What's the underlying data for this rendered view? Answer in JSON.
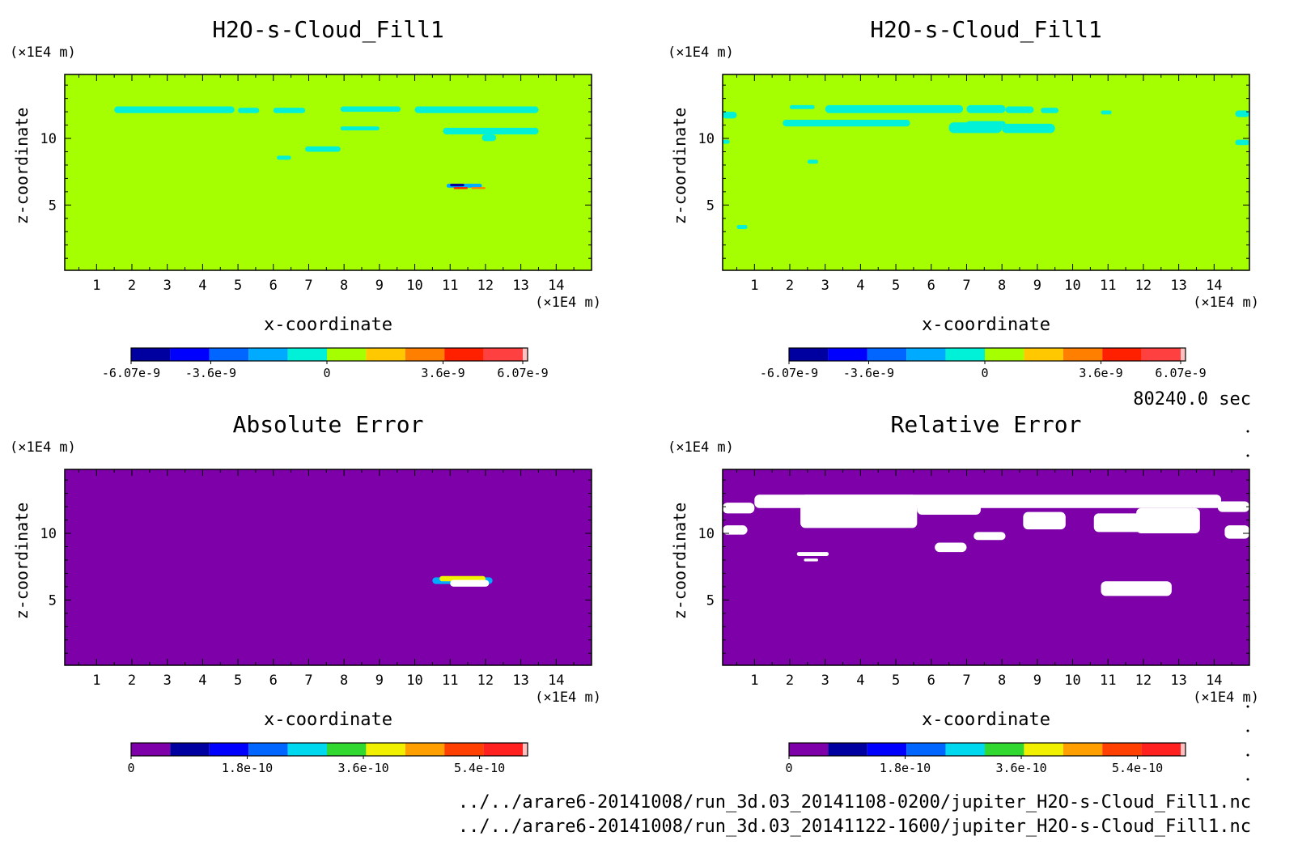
{
  "time_label": "80240.0 sec",
  "files": [
    "../../arare6-20141008/run_3d.03_20141108-0200/jupiter_H2O-s-Cloud_Fill1.nc",
    "../../arare6-20141008/run_3d.03_20141122-1600/jupiter_H2O-s-Cloud_Fill1.nc"
  ],
  "chart_data": [
    {
      "type": "heatmap",
      "title": "H2O-s-Cloud_Fill1",
      "xlabel": "x-coordinate",
      "ylabel": "z-coordinate",
      "x_unit": "(×1E4 m)",
      "y_unit": "(×1E4 m)",
      "xlim": [
        0.1,
        15.0
      ],
      "ylim": [
        0.1,
        14.8
      ],
      "x_ticks": [
        1,
        2,
        3,
        4,
        5,
        6,
        7,
        8,
        9,
        10,
        11,
        12,
        13,
        14
      ],
      "y_ticks": [
        5,
        10
      ],
      "background_color": "#a5ff00",
      "colorbar": {
        "colors": [
          "#0000a0",
          "#0000ff",
          "#0066ff",
          "#00aaff",
          "#00f0d8",
          "#a5ff00",
          "#ffc800",
          "#ff8000",
          "#ff2000",
          "#ff4040",
          "#ffc0c0"
        ],
        "tick_labels": [
          "-6.07e-9",
          "-3.6e-9",
          "0",
          "3.6e-9",
          "6.07e-9"
        ],
        "tick_values": [
          -6.07e-09,
          -3.6e-09,
          0,
          3.6e-09,
          6.07e-09
        ],
        "range": [
          -6.07e-09,
          6.07e-09
        ]
      },
      "regions": [
        {
          "color": "#00f0d8",
          "x": [
            1.5,
            4.9
          ],
          "z": [
            11.9,
            12.4
          ]
        },
        {
          "color": "#00f0d8",
          "x": [
            5.0,
            5.6
          ],
          "z": [
            11.9,
            12.3
          ]
        },
        {
          "color": "#00f0d8",
          "x": [
            6.0,
            6.9
          ],
          "z": [
            11.9,
            12.3
          ]
        },
        {
          "color": "#00f0d8",
          "x": [
            7.9,
            9.6
          ],
          "z": [
            12.0,
            12.4
          ]
        },
        {
          "color": "#00f0d8",
          "x": [
            10.0,
            13.5
          ],
          "z": [
            11.9,
            12.4
          ]
        },
        {
          "color": "#00f0d8",
          "x": [
            7.9,
            9.0
          ],
          "z": [
            10.6,
            10.9
          ]
        },
        {
          "color": "#00f0d8",
          "x": [
            10.8,
            13.5
          ],
          "z": [
            10.3,
            10.8
          ]
        },
        {
          "color": "#00f0d8",
          "x": [
            11.9,
            12.3
          ],
          "z": [
            9.8,
            10.3
          ]
        },
        {
          "color": "#00f0d8",
          "x": [
            6.9,
            7.9
          ],
          "z": [
            9.0,
            9.4
          ]
        },
        {
          "color": "#00f0d8",
          "x": [
            6.1,
            6.5
          ],
          "z": [
            8.4,
            8.7
          ]
        },
        {
          "color": "#00aaff",
          "x": [
            10.9,
            11.9
          ],
          "z": [
            6.3,
            6.6
          ]
        },
        {
          "color": "#0000a0",
          "x": [
            11.0,
            11.4
          ],
          "z": [
            6.4,
            6.6
          ]
        },
        {
          "color": "#ff2000",
          "x": [
            11.1,
            11.5
          ],
          "z": [
            6.2,
            6.35
          ]
        },
        {
          "color": "#ff8000",
          "x": [
            11.6,
            12.0
          ],
          "z": [
            6.2,
            6.35
          ]
        }
      ]
    },
    {
      "type": "heatmap",
      "title": "H2O-s-Cloud_Fill1",
      "xlabel": "x-coordinate",
      "ylabel": "z-coordinate",
      "x_unit": "(×1E4 m)",
      "y_unit": "(×1E4 m)",
      "xlim": [
        0.1,
        15.0
      ],
      "ylim": [
        0.1,
        14.8
      ],
      "x_ticks": [
        1,
        2,
        3,
        4,
        5,
        6,
        7,
        8,
        9,
        10,
        11,
        12,
        13,
        14
      ],
      "y_ticks": [
        5,
        10
      ],
      "background_color": "#a5ff00",
      "colorbar": {
        "colors": [
          "#0000a0",
          "#0000ff",
          "#0066ff",
          "#00aaff",
          "#00f0d8",
          "#a5ff00",
          "#ffc800",
          "#ff8000",
          "#ff2000",
          "#ff4040",
          "#ffc0c0"
        ],
        "tick_labels": [
          "-6.07e-9",
          "-3.6e-9",
          "0",
          "3.6e-9",
          "6.07e-9"
        ],
        "tick_values": [
          -6.07e-09,
          -3.6e-09,
          0,
          3.6e-09,
          6.07e-09
        ],
        "range": [
          -6.07e-09,
          6.07e-09
        ]
      },
      "regions": [
        {
          "color": "#00f0d8",
          "x": [
            0.1,
            0.5
          ],
          "z": [
            11.5,
            12.0
          ]
        },
        {
          "color": "#00f0d8",
          "x": [
            0.1,
            0.3
          ],
          "z": [
            9.6,
            9.9
          ]
        },
        {
          "color": "#00f0d8",
          "x": [
            2.0,
            2.7
          ],
          "z": [
            12.2,
            12.5
          ]
        },
        {
          "color": "#00f0d8",
          "x": [
            3.0,
            6.9
          ],
          "z": [
            11.9,
            12.5
          ]
        },
        {
          "color": "#00f0d8",
          "x": [
            7.0,
            8.1
          ],
          "z": [
            11.9,
            12.5
          ]
        },
        {
          "color": "#00f0d8",
          "x": [
            8.1,
            8.9
          ],
          "z": [
            11.9,
            12.4
          ]
        },
        {
          "color": "#00f0d8",
          "x": [
            9.1,
            9.6
          ],
          "z": [
            11.9,
            12.3
          ]
        },
        {
          "color": "#00f0d8",
          "x": [
            1.8,
            5.4
          ],
          "z": [
            10.9,
            11.4
          ]
        },
        {
          "color": "#00f0d8",
          "x": [
            6.5,
            8.0
          ],
          "z": [
            10.4,
            11.2
          ]
        },
        {
          "color": "#00f0d8",
          "x": [
            7.0,
            8.1
          ],
          "z": [
            10.9,
            11.3
          ]
        },
        {
          "color": "#00f0d8",
          "x": [
            8.0,
            9.5
          ],
          "z": [
            10.4,
            11.1
          ]
        },
        {
          "color": "#00f0d8",
          "x": [
            10.8,
            11.1
          ],
          "z": [
            11.8,
            12.1
          ]
        },
        {
          "color": "#00f0d8",
          "x": [
            14.6,
            15.0
          ],
          "z": [
            11.6,
            12.1
          ]
        },
        {
          "color": "#00f0d8",
          "x": [
            14.6,
            15.0
          ],
          "z": [
            9.5,
            9.9
          ]
        },
        {
          "color": "#00f0d8",
          "x": [
            2.5,
            2.8
          ],
          "z": [
            8.1,
            8.4
          ]
        },
        {
          "color": "#00f0d8",
          "x": [
            0.5,
            0.8
          ],
          "z": [
            3.2,
            3.5
          ]
        }
      ]
    },
    {
      "type": "heatmap",
      "title": "Absolute Error",
      "xlabel": "x-coordinate",
      "ylabel": "z-coordinate",
      "x_unit": "(×1E4 m)",
      "y_unit": "(×1E4 m)",
      "xlim": [
        0.1,
        15.0
      ],
      "ylim": [
        0.1,
        14.8
      ],
      "x_ticks": [
        1,
        2,
        3,
        4,
        5,
        6,
        7,
        8,
        9,
        10,
        11,
        12,
        13,
        14
      ],
      "y_ticks": [
        5,
        10
      ],
      "background_color": "#7d00a8",
      "colorbar": {
        "colors": [
          "#7d00a8",
          "#0000a0",
          "#0000ff",
          "#0066ff",
          "#00d8f0",
          "#30d830",
          "#f0f000",
          "#ffa000",
          "#ff4000",
          "#ff2020",
          "#ffc0c0"
        ],
        "tick_labels": [
          "0",
          "1.8e-10",
          "3.6e-10",
          "5.4e-10"
        ],
        "tick_values": [
          0,
          1.8e-10,
          3.6e-10,
          5.4e-10
        ],
        "range": [
          0,
          6.07e-10
        ]
      },
      "regions": [
        {
          "color": "#00aaff",
          "x": [
            10.5,
            12.2
          ],
          "z": [
            6.2,
            6.7
          ]
        },
        {
          "color": "#f0f000",
          "x": [
            10.7,
            12.0
          ],
          "z": [
            6.4,
            6.8
          ]
        },
        {
          "color": "#ffffff",
          "x": [
            11.0,
            12.1
          ],
          "z": [
            6.0,
            6.5
          ]
        }
      ]
    },
    {
      "type": "heatmap",
      "title": "Relative Error",
      "xlabel": "x-coordinate",
      "ylabel": "z-coordinate",
      "x_unit": "(×1E4 m)",
      "y_unit": "(×1E4 m)",
      "xlim": [
        0.1,
        15.0
      ],
      "ylim": [
        0.1,
        14.8
      ],
      "x_ticks": [
        1,
        2,
        3,
        4,
        5,
        6,
        7,
        8,
        9,
        10,
        11,
        12,
        13,
        14
      ],
      "y_ticks": [
        5,
        10
      ],
      "background_color": "#7d00a8",
      "colorbar": {
        "colors": [
          "#7d00a8",
          "#0000a0",
          "#0000ff",
          "#0066ff",
          "#00d8f0",
          "#30d830",
          "#f0f000",
          "#ffa000",
          "#ff4000",
          "#ff2020",
          "#ffc0c0"
        ],
        "tick_labels": [
          "0",
          "1.8e-10",
          "3.6e-10",
          "5.4e-10"
        ],
        "tick_values": [
          0,
          1.8e-10,
          3.6e-10,
          5.4e-10
        ],
        "range": [
          0,
          6.07e-10
        ]
      },
      "regions": [
        {
          "color": "#ffffff",
          "x": [
            0.1,
            1.0
          ],
          "z": [
            11.5,
            12.3
          ]
        },
        {
          "color": "#ffffff",
          "x": [
            1.0,
            14.2
          ],
          "z": [
            11.9,
            12.9
          ]
        },
        {
          "color": "#ffffff",
          "x": [
            2.3,
            5.6
          ],
          "z": [
            10.4,
            12.9
          ]
        },
        {
          "color": "#ffffff",
          "x": [
            5.6,
            7.4
          ],
          "z": [
            11.4,
            12.5
          ]
        },
        {
          "color": "#ffffff",
          "x": [
            8.6,
            9.8
          ],
          "z": [
            10.3,
            11.6
          ]
        },
        {
          "color": "#ffffff",
          "x": [
            10.6,
            12.7
          ],
          "z": [
            10.1,
            11.5
          ]
        },
        {
          "color": "#ffffff",
          "x": [
            11.8,
            13.6
          ],
          "z": [
            10.0,
            11.9
          ]
        },
        {
          "color": "#ffffff",
          "x": [
            14.1,
            15.0
          ],
          "z": [
            11.6,
            12.4
          ]
        },
        {
          "color": "#ffffff",
          "x": [
            0.1,
            0.8
          ],
          "z": [
            9.9,
            10.6
          ]
        },
        {
          "color": "#ffffff",
          "x": [
            14.3,
            15.0
          ],
          "z": [
            9.6,
            10.6
          ]
        },
        {
          "color": "#ffffff",
          "x": [
            7.2,
            8.1
          ],
          "z": [
            9.5,
            10.1
          ]
        },
        {
          "color": "#ffffff",
          "x": [
            6.1,
            7.0
          ],
          "z": [
            8.6,
            9.3
          ]
        },
        {
          "color": "#ffffff",
          "x": [
            10.8,
            12.8
          ],
          "z": [
            5.3,
            6.4
          ]
        },
        {
          "color": "#ffffff",
          "x": [
            2.2,
            3.1
          ],
          "z": [
            8.3,
            8.6
          ]
        },
        {
          "color": "#ffffff",
          "x": [
            2.4,
            2.8
          ],
          "z": [
            7.9,
            8.1
          ]
        }
      ]
    }
  ]
}
